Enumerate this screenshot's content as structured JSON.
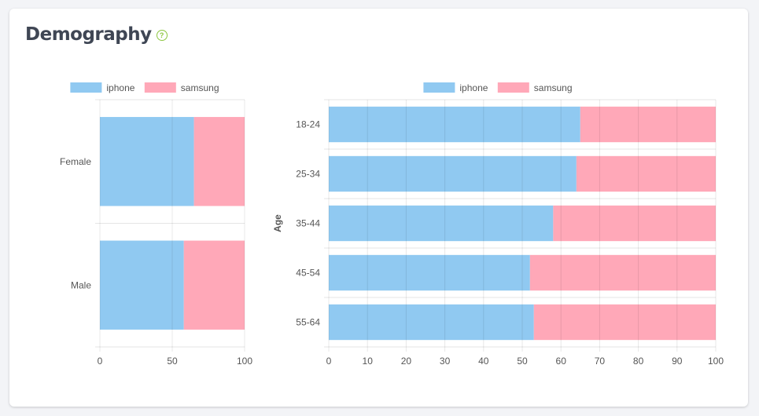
{
  "card": {
    "title": "Demography",
    "help_icon": "question-circle-icon"
  },
  "colors": {
    "iphone": "#90c9f1",
    "samsung": "#ffa8b8",
    "grid": "#e4e4e4",
    "tick_text": "#555555",
    "title_text": "#3f4654",
    "help_accent": "#8cc63f"
  },
  "chart_data": [
    {
      "id": "gender",
      "type": "bar",
      "orientation": "horizontal",
      "stacked": true,
      "categories": [
        "Female",
        "Male"
      ],
      "series": [
        {
          "name": "iphone",
          "values": [
            65,
            58
          ]
        },
        {
          "name": "samsung",
          "values": [
            35,
            42
          ]
        }
      ],
      "xlim": [
        0,
        100
      ],
      "xticks": [
        0,
        50,
        100
      ],
      "xlabel": "",
      "ylabel": "",
      "legend": "top",
      "grid": true
    },
    {
      "id": "age",
      "type": "bar",
      "orientation": "horizontal",
      "stacked": true,
      "categories": [
        "18-24",
        "25-34",
        "35-44",
        "45-54",
        "55-64"
      ],
      "series": [
        {
          "name": "iphone",
          "values": [
            65,
            64,
            58,
            52,
            53
          ]
        },
        {
          "name": "samsung",
          "values": [
            35,
            36,
            42,
            48,
            47
          ]
        }
      ],
      "xlim": [
        0,
        100
      ],
      "xticks": [
        0,
        10,
        20,
        30,
        40,
        50,
        60,
        70,
        80,
        90,
        100
      ],
      "xlabel": "",
      "ylabel": "Age",
      "legend": "top",
      "grid": true
    }
  ]
}
